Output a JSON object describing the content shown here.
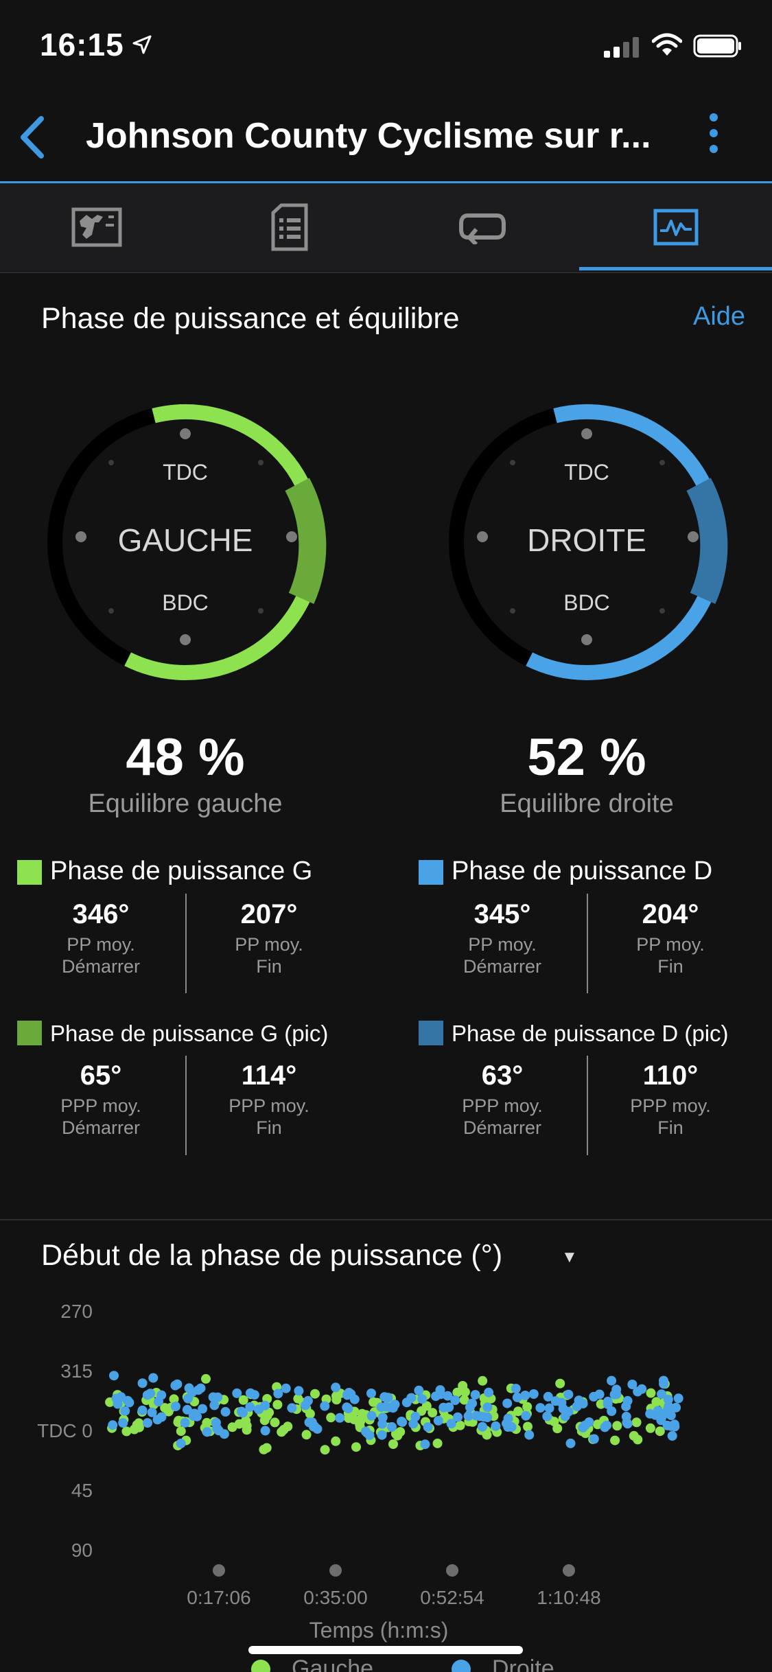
{
  "status_bar": {
    "time": "16:15"
  },
  "header": {
    "title": "Johnson County Cyclisme sur r..."
  },
  "tabs": [
    {
      "icon": "map-overview-icon"
    },
    {
      "icon": "details-list-icon"
    },
    {
      "icon": "laps-icon"
    },
    {
      "icon": "graphs-icon",
      "selected": true
    }
  ],
  "section": {
    "title": "Phase de puissance et équilibre",
    "help": "Aide"
  },
  "dials": {
    "left": {
      "label": "GAUCHE",
      "tdc": "TDC",
      "bdc": "BDC",
      "balance": "48 %",
      "balance_label": "Equilibre gauche"
    },
    "right": {
      "label": "DROITE",
      "tdc": "TDC",
      "bdc": "BDC",
      "balance": "52 %",
      "balance_label": "Equilibre droite"
    }
  },
  "phases": {
    "left": {
      "title": "Phase de puissance G",
      "start": "346°",
      "start_label1": "PP moy.",
      "start_label2": "Démarrer",
      "end": "207°",
      "end_label1": "PP moy.",
      "end_label2": "Fin"
    },
    "right": {
      "title": "Phase de puissance D",
      "start": "345°",
      "start_label1": "PP moy.",
      "start_label2": "Démarrer",
      "end": "204°",
      "end_label1": "PP moy.",
      "end_label2": "Fin"
    },
    "left_peak": {
      "title": "Phase de puissance G (pic)",
      "start": "65°",
      "start_label1": "PPP moy.",
      "start_label2": "Démarrer",
      "end": "114°",
      "end_label1": "PPP moy.",
      "end_label2": "Fin"
    },
    "right_peak": {
      "title": "Phase de puissance D (pic)",
      "start": "63°",
      "start_label1": "PPP moy.",
      "start_label2": "Démarrer",
      "end": "110°",
      "end_label1": "PPP moy.",
      "end_label2": "Fin"
    }
  },
  "colors": {
    "left": "#8ee24f",
    "left_peak": "#6aaa3a",
    "right": "#4aa3e6",
    "right_peak": "#3575a6",
    "accent": "#3d9ae3"
  },
  "chart_data": {
    "type": "scatter",
    "title": "Début de la phase de puissance (°)",
    "xlabel": "Temps (h:m:s)",
    "x_ticks": [
      "0:17:06",
      "0:35:00",
      "0:52:54",
      "1:10:48"
    ],
    "y_ticks": [
      "270",
      "315",
      "TDC 0",
      "45",
      "90"
    ],
    "series": [
      {
        "name": "Gauche",
        "color": "#8ee24f"
      },
      {
        "name": "Droite",
        "color": "#4aa3e6"
      }
    ]
  }
}
